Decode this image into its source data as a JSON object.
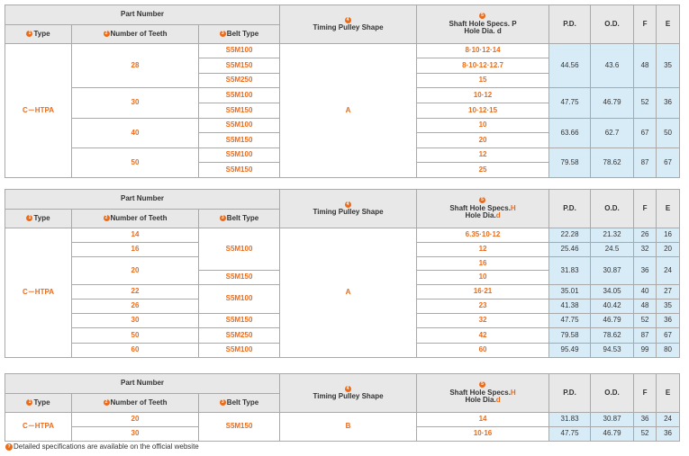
{
  "headers": {
    "part_number": "Part Number",
    "type": "Type",
    "teeth": "Number of Teeth",
    "belt": "Belt Type",
    "shape": "Timing Pulley Shape",
    "shaft1_l1": "Shaft Hole Specs. P",
    "shaft1_l2": "Hole Dia. d",
    "shaft2_a": "Shaft Hole Specs.",
    "shaft2_b": "H",
    "shaft2_c": "Hole Dia.",
    "shaft2_d": "d",
    "pd": "P.D.",
    "od": "O.D.",
    "f": "F",
    "e": "E",
    "n1": "1",
    "n2": "2",
    "n3": "3",
    "n4": "4",
    "n5": "5"
  },
  "table1": {
    "type": "C－HTPA",
    "shape": "A",
    "teeth": [
      "28",
      "30",
      "40",
      "50"
    ],
    "belts": [
      "S5M100",
      "S5M150",
      "S5M250",
      "S5M100",
      "S5M150",
      "S5M100",
      "S5M150",
      "S5M100",
      "S5M150"
    ],
    "shafts": [
      "8·10·12·14",
      "8·10·12·12.7",
      "15",
      "10·12",
      "10·12·15",
      "10",
      "20",
      "12",
      "25"
    ],
    "dims": [
      {
        "pd": "44.56",
        "od": "43.6",
        "f": "48",
        "e": "35"
      },
      {
        "pd": "47.75",
        "od": "46.79",
        "f": "52",
        "e": "36"
      },
      {
        "pd": "63.66",
        "od": "62.7",
        "f": "67",
        "e": "50"
      },
      {
        "pd": "79.58",
        "od": "78.62",
        "f": "87",
        "e": "67"
      }
    ]
  },
  "table2": {
    "type": "C－HTPA",
    "shape": "A",
    "rows": [
      {
        "teeth": "14",
        "shaft": "6.35·10·12",
        "pd": "22.28",
        "od": "21.32",
        "f": "26",
        "e": "16"
      },
      {
        "teeth": "16",
        "shaft": "12",
        "pd": "25.46",
        "od": "24.5",
        "f": "32",
        "e": "20"
      },
      {
        "teeth": "20",
        "shaft": "16",
        "pd": "31.83",
        "od": "30.87",
        "f": "36",
        "e": "24"
      },
      {
        "teeth": "",
        "shaft": "10"
      },
      {
        "teeth": "22",
        "shaft": "16·21",
        "pd": "35.01",
        "od": "34.05",
        "f": "40",
        "e": "27"
      },
      {
        "teeth": "26",
        "shaft": "23",
        "pd": "41.38",
        "od": "40.42",
        "f": "48",
        "e": "35"
      },
      {
        "teeth": "30",
        "shaft": "32",
        "pd": "47.75",
        "od": "46.79",
        "f": "52",
        "e": "36"
      },
      {
        "teeth": "50",
        "shaft": "42",
        "pd": "79.58",
        "od": "78.62",
        "f": "87",
        "e": "67"
      },
      {
        "teeth": "60",
        "shaft": "60",
        "pd": "95.49",
        "od": "94.53",
        "f": "99",
        "e": "80"
      }
    ],
    "belts": [
      "S5M100",
      "S5M150",
      "S5M100",
      "S5M150",
      "S5M250",
      "S5M100"
    ]
  },
  "table3": {
    "type": "C－HTPA",
    "shape": "B",
    "belt": "S5M150",
    "rows": [
      {
        "teeth": "20",
        "shaft": "14",
        "pd": "31.83",
        "od": "30.87",
        "f": "36",
        "e": "24"
      },
      {
        "teeth": "30",
        "shaft": "10·16",
        "pd": "47.75",
        "od": "46.79",
        "f": "52",
        "e": "36"
      }
    ]
  },
  "footnote": "Detailed specifications are available on the official website",
  "footnote_icon": "info-icon"
}
